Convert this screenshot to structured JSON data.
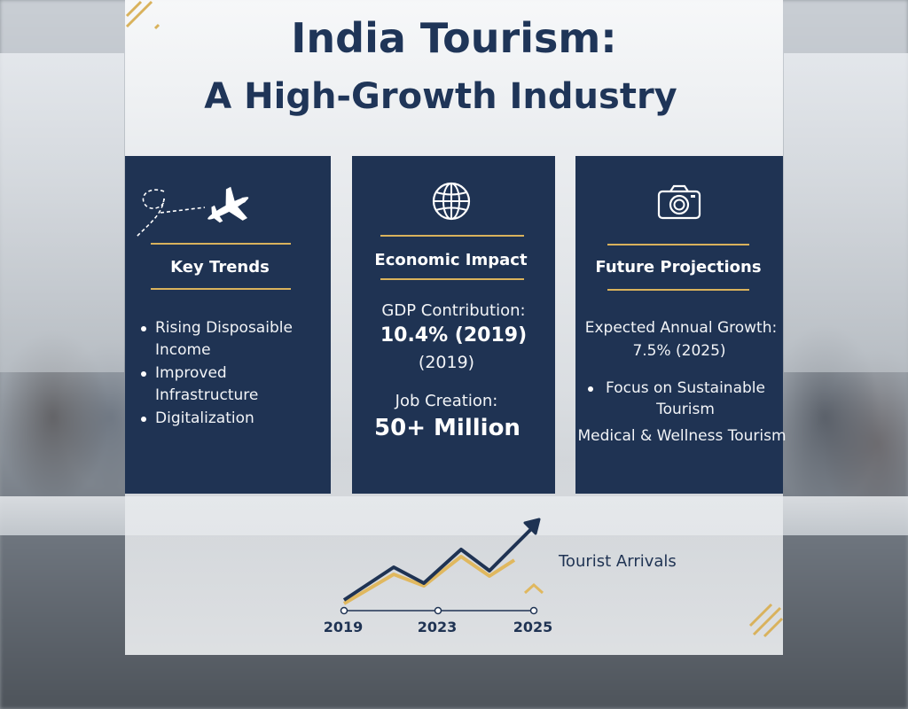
{
  "title": {
    "line1": "India Tourism:",
    "line2": "A High-Growth Industry"
  },
  "colors": {
    "navy": "#1f3353",
    "gold": "#d9b25c",
    "title": "#1f3558"
  },
  "cards": {
    "key_trends": {
      "icon": "airplane-icon",
      "heading": "Key Trends",
      "items": [
        "Rising Disposaible Income",
        "Improved Infrastructure",
        "Digitalization"
      ]
    },
    "economic_impact": {
      "icon": "globe-icon",
      "heading": "Economic Impact",
      "gdp_label": "GDP Contribution:",
      "gdp_value": "10.4% (2019)",
      "gdp_year": "(2019)",
      "jobs_label": "Job Creation:",
      "jobs_value": "50+ Million"
    },
    "future_projections": {
      "icon": "camera-icon",
      "heading": "Future Projections",
      "growth_label": "Expected Annual Growth:",
      "growth_value": "7.5% (2025)",
      "bullet": "Focus on Sustainable Tourism",
      "extra": "Medical & Wellness Tourism"
    }
  },
  "chart_data": {
    "type": "line",
    "x": [
      "2019",
      "2023",
      "2025"
    ],
    "series": [
      {
        "name": "Tourist Arrivals"
      }
    ],
    "label": "Tourist Arrivals"
  }
}
